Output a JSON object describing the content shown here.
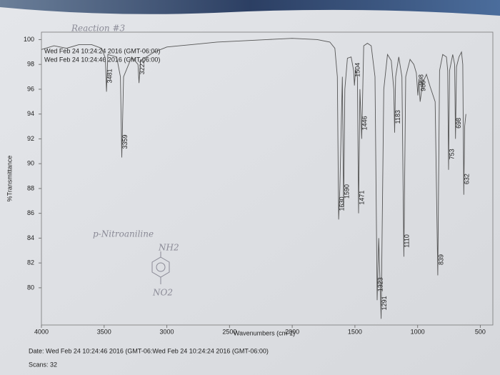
{
  "chart_data": {
    "type": "line",
    "title": "Reaction #3",
    "subtitles": [
      "Wed Feb 24 10:24:24 2016 (GMT-06:00)",
      "Wed Feb 24 10:24:46 2016 (GMT-06:00)"
    ],
    "y_label": "%Transmittance",
    "x_label": "Wavenumbers (cm-1)",
    "footer": [
      "Date: Wed Feb 24 10:24:46 2016 (GMT-06:Wed Feb 24 10:24:24 2016 (GMT-06:00)",
      "Scans: 32"
    ],
    "annotations": [
      "p-Nitroaniline",
      "NH2",
      "NO2"
    ],
    "color": "#555555",
    "x": [
      4000,
      3900,
      3800,
      3700,
      3600,
      3520,
      3490,
      3481,
      3470,
      3400,
      3370,
      3359,
      3345,
      3280,
      3230,
      3222,
      3210,
      3100,
      3000,
      2800,
      2600,
      2400,
      2200,
      2000,
      1800,
      1700,
      1660,
      1640,
      1630,
      1620,
      1600,
      1590,
      1580,
      1560,
      1530,
      1510,
      1504,
      1495,
      1480,
      1471,
      1460,
      1446,
      1430,
      1400,
      1370,
      1340,
      1323,
      1310,
      1291,
      1270,
      1240,
      1210,
      1190,
      1183,
      1175,
      1150,
      1125,
      1110,
      1095,
      1060,
      1030,
      1010,
      998,
      990,
      980,
      960,
      930,
      900,
      860,
      839,
      825,
      800,
      770,
      760,
      753,
      745,
      720,
      705,
      698,
      690,
      670,
      650,
      640,
      632,
      625,
      615
    ],
    "values": [
      99.2,
      99.5,
      99.3,
      99.6,
      99.6,
      99.3,
      98.5,
      95.8,
      98.8,
      98.6,
      97,
      90.5,
      97,
      98.6,
      98,
      96.5,
      98.3,
      99,
      99.4,
      99.6,
      99.8,
      99.9,
      100,
      100.1,
      100,
      99.8,
      99.3,
      97,
      85.5,
      88,
      97,
      86.5,
      96,
      98.5,
      98.6,
      97.5,
      96.3,
      97.6,
      97,
      86,
      96,
      92,
      99.5,
      99.7,
      99.5,
      97,
      79,
      84,
      77.5,
      96,
      98.8,
      98.3,
      96,
      92.5,
      97,
      98.6,
      97,
      82.5,
      97,
      98.4,
      98,
      97.3,
      95.5,
      96.7,
      95,
      96.5,
      97.2,
      96.2,
      95,
      81,
      97.5,
      98.8,
      98.6,
      97.5,
      89.5,
      97.5,
      98.8,
      98,
      92,
      97.8,
      98.6,
      99,
      98,
      87.5,
      93,
      94
    ],
    "peak_labels": [
      3481,
      3359,
      3222,
      1630,
      1590,
      1504,
      1471,
      1446,
      1323,
      1291,
      1183,
      1110,
      998,
      980,
      839,
      753,
      698,
      632
    ],
    "xlim": [
      4000,
      400
    ],
    "ylim": [
      77,
      100.6
    ],
    "xticks": [
      4000,
      3500,
      3000,
      2500,
      2000,
      1500,
      1000,
      500
    ],
    "yticks": [
      80,
      82,
      84,
      86,
      88,
      90,
      92,
      94,
      96,
      98,
      100
    ],
    "grid": false
  }
}
